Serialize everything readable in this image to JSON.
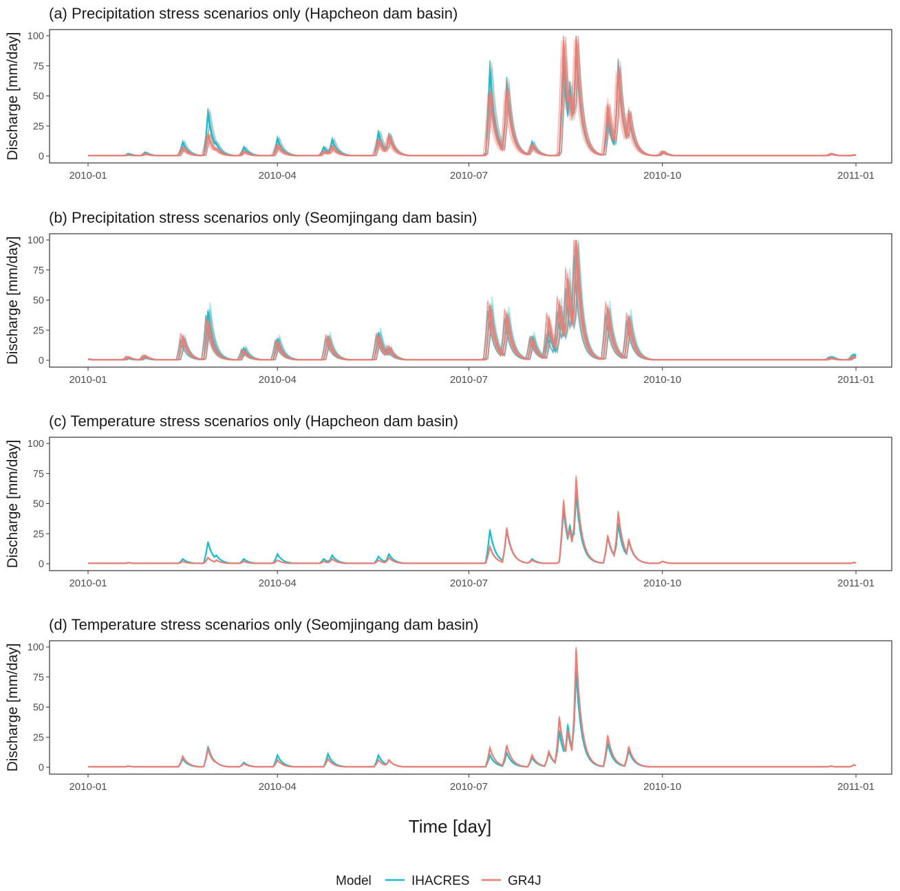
{
  "chart_data": [
    {
      "type": "line",
      "title": "(a) Precipitation stress scenarios only (Hapcheon dam basin)",
      "ylabel": "Discharge [mm/day]",
      "ylim": [
        0,
        100
      ],
      "yticks": [
        "0",
        "25",
        "50",
        "75",
        "100"
      ],
      "xlim": [
        "2010-01-01",
        "2010-12-31"
      ],
      "xticks": [
        "2010-01",
        "2010-04",
        "2010-07",
        "2010-10",
        "2011-01"
      ],
      "ensemble_spread": 0.25,
      "series": [
        {
          "name": "IHACRES",
          "x": [
            "2010-01-01",
            "2010-01-20",
            "2010-01-28",
            "2010-02-15",
            "2010-02-27",
            "2010-03-03",
            "2010-03-16",
            "2010-04-01",
            "2010-04-23",
            "2010-04-27",
            "2010-05-19",
            "2010-05-24",
            "2010-07-11",
            "2010-07-19",
            "2010-07-31",
            "2010-08-15",
            "2010-08-18",
            "2010-08-21",
            "2010-09-05",
            "2010-09-10",
            "2010-09-15",
            "2010-10-01",
            "2010-12-20",
            "2010-12-31"
          ],
          "values": [
            0,
            2,
            3,
            11,
            35,
            10,
            7,
            14,
            7,
            13,
            19,
            17,
            70,
            58,
            11,
            75,
            55,
            88,
            30,
            71,
            34,
            3,
            2,
            1
          ]
        },
        {
          "name": "GR4J",
          "x": [
            "2010-01-01",
            "2010-01-20",
            "2010-01-28",
            "2010-02-15",
            "2010-02-27",
            "2010-03-03",
            "2010-03-16",
            "2010-04-01",
            "2010-04-23",
            "2010-04-27",
            "2010-05-19",
            "2010-05-24",
            "2010-07-11",
            "2010-07-19",
            "2010-07-31",
            "2010-08-15",
            "2010-08-18",
            "2010-08-21",
            "2010-09-05",
            "2010-09-10",
            "2010-09-15",
            "2010-10-01",
            "2010-12-20",
            "2010-12-31"
          ],
          "values": [
            0,
            1,
            2,
            7,
            18,
            6,
            4,
            9,
            4,
            8,
            13,
            16,
            52,
            55,
            9,
            96,
            50,
            97,
            42,
            71,
            36,
            4,
            2,
            1
          ]
        }
      ]
    },
    {
      "type": "line",
      "title": "(b) Precipitation stress scenarios only (Seomjingang dam basin)",
      "ylabel": "Discharge [mm/day]",
      "ylim": [
        0,
        100
      ],
      "yticks": [
        "0",
        "25",
        "50",
        "75",
        "100"
      ],
      "xlim": [
        "2010-01-01",
        "2010-12-31"
      ],
      "xticks": [
        "2010-01",
        "2010-04",
        "2010-07",
        "2010-10",
        "2011-01"
      ],
      "ensemble_spread": 0.3,
      "series": [
        {
          "name": "IHACRES",
          "x": [
            "2010-01-01",
            "2010-01-20",
            "2010-01-28",
            "2010-02-15",
            "2010-02-27",
            "2010-03-03",
            "2010-03-16",
            "2010-04-01",
            "2010-04-25",
            "2010-05-19",
            "2010-05-24",
            "2010-07-11",
            "2010-07-19",
            "2010-07-31",
            "2010-08-08",
            "2010-08-13",
            "2010-08-17",
            "2010-08-21",
            "2010-09-05",
            "2010-09-15",
            "2010-12-20",
            "2010-12-31"
          ],
          "values": [
            1,
            2,
            3,
            18,
            41,
            8,
            10,
            18,
            20,
            23,
            10,
            45,
            38,
            20,
            24,
            44,
            65,
            95,
            42,
            36,
            3,
            5
          ]
        },
        {
          "name": "GR4J",
          "x": [
            "2010-01-01",
            "2010-01-20",
            "2010-01-28",
            "2010-02-15",
            "2010-02-27",
            "2010-03-03",
            "2010-03-16",
            "2010-04-01",
            "2010-04-25",
            "2010-05-19",
            "2010-05-24",
            "2010-07-11",
            "2010-07-19",
            "2010-07-31",
            "2010-08-08",
            "2010-08-13",
            "2010-08-17",
            "2010-08-21",
            "2010-09-05",
            "2010-09-15",
            "2010-12-20",
            "2010-12-31"
          ],
          "values": [
            1,
            3,
            4,
            20,
            32,
            6,
            8,
            15,
            19,
            20,
            11,
            44,
            38,
            18,
            35,
            47,
            68,
            100,
            43,
            35,
            2,
            3
          ]
        }
      ]
    },
    {
      "type": "line",
      "title": "(c) Temperature stress scenarios only (Hapcheon dam basin)",
      "ylabel": "Discharge [mm/day]",
      "ylim": [
        0,
        100
      ],
      "yticks": [
        "0",
        "25",
        "50",
        "75",
        "100"
      ],
      "xlim": [
        "2010-01-01",
        "2010-12-31"
      ],
      "xticks": [
        "2010-01",
        "2010-04",
        "2010-07",
        "2010-10",
        "2011-01"
      ],
      "ensemble_spread": 0.1,
      "series": [
        {
          "name": "IHACRES",
          "x": [
            "2010-01-01",
            "2010-01-20",
            "2010-02-15",
            "2010-02-27",
            "2010-03-03",
            "2010-03-16",
            "2010-04-01",
            "2010-04-23",
            "2010-04-27",
            "2010-05-19",
            "2010-05-24",
            "2010-07-11",
            "2010-07-19",
            "2010-07-31",
            "2010-08-15",
            "2010-08-18",
            "2010-08-21",
            "2010-09-05",
            "2010-09-10",
            "2010-09-15",
            "2010-10-01",
            "2010-12-31"
          ],
          "values": [
            0,
            1,
            4,
            18,
            7,
            4,
            8,
            4,
            7,
            6,
            8,
            28,
            28,
            4,
            45,
            32,
            58,
            22,
            33,
            19,
            2,
            1
          ]
        },
        {
          "name": "GR4J",
          "x": [
            "2010-01-01",
            "2010-01-20",
            "2010-02-15",
            "2010-02-27",
            "2010-03-03",
            "2010-03-16",
            "2010-04-01",
            "2010-04-23",
            "2010-04-27",
            "2010-05-19",
            "2010-05-24",
            "2010-07-11",
            "2010-07-19",
            "2010-07-31",
            "2010-08-15",
            "2010-08-18",
            "2010-08-21",
            "2010-09-05",
            "2010-09-10",
            "2010-09-15",
            "2010-10-01",
            "2010-12-31"
          ],
          "values": [
            0,
            1,
            2,
            5,
            3,
            2,
            3,
            2,
            4,
            3,
            5,
            14,
            29,
            3,
            51,
            27,
            70,
            23,
            42,
            20,
            2,
            1
          ]
        }
      ]
    },
    {
      "type": "line",
      "title": "(d) Temperature stress scenarios only (Seomjingang dam basin)",
      "ylabel": "Discharge [mm/day]",
      "ylim": [
        0,
        100
      ],
      "yticks": [
        "0",
        "25",
        "50",
        "75",
        "100"
      ],
      "xlim": [
        "2010-01-01",
        "2010-12-31"
      ],
      "xticks": [
        "2010-01",
        "2010-04",
        "2010-07",
        "2010-10",
        "2011-01"
      ],
      "ensemble_spread": 0.1,
      "series": [
        {
          "name": "IHACRES",
          "x": [
            "2010-01-01",
            "2010-01-20",
            "2010-02-15",
            "2010-02-27",
            "2010-03-03",
            "2010-03-16",
            "2010-04-01",
            "2010-04-25",
            "2010-05-19",
            "2010-05-24",
            "2010-07-11",
            "2010-07-19",
            "2010-07-31",
            "2010-08-08",
            "2010-08-13",
            "2010-08-17",
            "2010-08-21",
            "2010-09-05",
            "2010-09-15",
            "2010-12-20",
            "2010-12-31"
          ],
          "values": [
            0,
            1,
            7,
            17,
            4,
            4,
            10,
            11,
            10,
            6,
            10,
            12,
            8,
            12,
            30,
            35,
            80,
            20,
            14,
            1,
            2
          ]
        },
        {
          "name": "GR4J",
          "x": [
            "2010-01-01",
            "2010-01-20",
            "2010-02-15",
            "2010-02-27",
            "2010-03-03",
            "2010-03-16",
            "2010-04-01",
            "2010-04-25",
            "2010-05-19",
            "2010-05-24",
            "2010-07-11",
            "2010-07-19",
            "2010-07-31",
            "2010-08-08",
            "2010-08-13",
            "2010-08-17",
            "2010-08-21",
            "2010-09-05",
            "2010-09-15",
            "2010-12-20",
            "2010-12-31"
          ],
          "values": [
            0,
            1,
            9,
            15,
            4,
            3,
            6,
            7,
            6,
            6,
            16,
            18,
            10,
            13,
            41,
            30,
            98,
            26,
            17,
            1,
            2
          ]
        }
      ]
    }
  ],
  "xlabel": "Time [day]",
  "legend": {
    "title": "Model",
    "placement": "bottom",
    "items": [
      {
        "label": "IHACRES",
        "color": "#17BECF"
      },
      {
        "label": "GR4J",
        "color": "#F07D73"
      }
    ]
  },
  "colors": {
    "IHACRES": "#17BECF",
    "GR4J": "#F07D73",
    "ensemble_grey": "#9a9a9a",
    "panel_border": "#333333"
  }
}
